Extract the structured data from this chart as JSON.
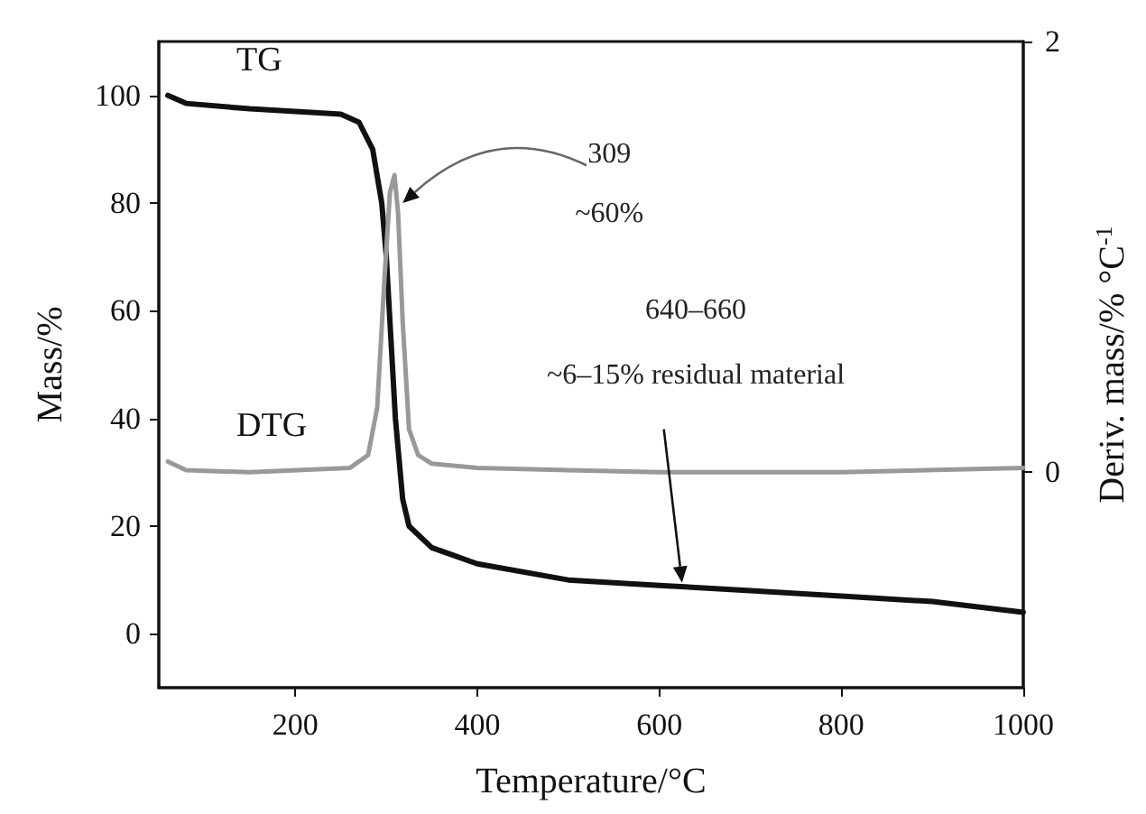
{
  "chart_data": {
    "type": "line",
    "xlabel": "Temperature/°C",
    "ylabel": "Mass/%",
    "y2label": "Deriv. mass/% °C$^{-1}$",
    "xlim": [
      50,
      1000
    ],
    "xticks": [
      200,
      400,
      600,
      800,
      1000
    ],
    "ylim": [
      -10,
      110
    ],
    "yticks": [
      0,
      20,
      40,
      60,
      80,
      100
    ],
    "y2lim": [
      -1,
      2
    ],
    "y2ticks": [
      0,
      2
    ],
    "grid": false,
    "legend": false,
    "marker": "none",
    "line_style": "solid",
    "series": [
      {
        "name": "TG",
        "color": "#111111",
        "x": [
          60,
          80,
          150,
          250,
          270,
          285,
          295,
          300,
          305,
          310,
          318,
          325,
          350,
          400,
          500,
          600,
          700,
          800,
          900,
          950,
          1000
        ],
        "values": [
          100,
          98.5,
          97.5,
          96.5,
          95,
          90,
          80,
          70,
          55,
          40,
          25,
          20,
          16,
          13,
          10,
          9,
          8,
          7,
          6,
          5,
          4
        ]
      },
      {
        "name": "DTG",
        "color": "#999999",
        "axis": "y2",
        "x": [
          60,
          80,
          150,
          260,
          280,
          290,
          298,
          304,
          309,
          313,
          318,
          325,
          335,
          350,
          400,
          500,
          600,
          800,
          1000
        ],
        "values": [
          0.05,
          0.01,
          0,
          0.02,
          0.08,
          0.3,
          0.9,
          1.3,
          1.38,
          1.2,
          0.7,
          0.2,
          0.08,
          0.04,
          0.02,
          0.01,
          0,
          0,
          0.02
        ]
      }
    ],
    "annotations": [
      "309",
      "~60%",
      "640–660",
      "~6–15% residual material"
    ]
  }
}
